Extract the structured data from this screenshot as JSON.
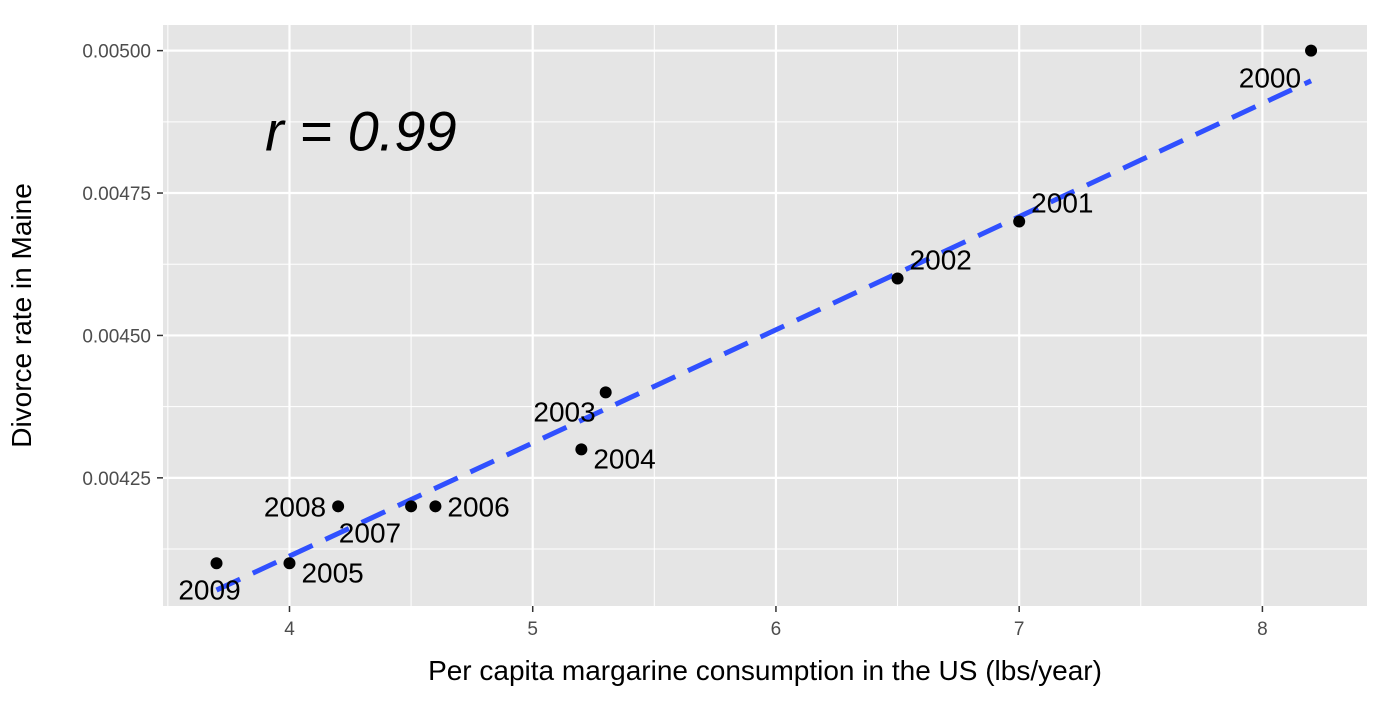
{
  "chart_data": {
    "type": "scatter",
    "xlabel": "Per capita margarine consumption in the US (lbs/year)",
    "ylabel": "Divorce rate in Maine",
    "xlim": [
      3.48,
      8.43
    ],
    "ylim": [
      0.004025,
      0.005045
    ],
    "x_ticks": [
      4,
      5,
      6,
      7,
      8
    ],
    "x_tick_labels": [
      "4",
      "5",
      "6",
      "7",
      "8"
    ],
    "y_ticks": [
      0.00425,
      0.0045,
      0.00475,
      0.005
    ],
    "y_tick_labels": [
      "0.00425",
      "0.00450",
      "0.00475",
      "0.00500"
    ],
    "grid": true,
    "annotation": "r = 0.99",
    "annotation_pos": [
      3.9,
      0.00486
    ],
    "points": [
      {
        "x": 8.2,
        "y": 0.005,
        "label": "2000",
        "label_side": "below-left"
      },
      {
        "x": 7.0,
        "y": 0.0047,
        "label": "2001",
        "label_side": "above-right"
      },
      {
        "x": 6.5,
        "y": 0.0046,
        "label": "2002",
        "label_side": "above-right"
      },
      {
        "x": 5.3,
        "y": 0.0044,
        "label": "2003",
        "label_side": "below-left"
      },
      {
        "x": 5.2,
        "y": 0.0043,
        "label": "2004",
        "label_side": "below-right"
      },
      {
        "x": 4.0,
        "y": 0.0041,
        "label": "2005",
        "label_side": "below-right"
      },
      {
        "x": 4.6,
        "y": 0.0042,
        "label": "2006",
        "label_side": "right"
      },
      {
        "x": 4.5,
        "y": 0.0042,
        "label": "2007",
        "label_side": "below-left"
      },
      {
        "x": 4.2,
        "y": 0.0042,
        "label": "2008",
        "label_side": "left"
      },
      {
        "x": 3.7,
        "y": 0.0041,
        "label": "2009",
        "label_side": "below"
      }
    ],
    "trend_line": {
      "style": "dashed",
      "color": "#3050ff",
      "x": [
        3.7,
        8.2
      ],
      "y": [
        0.004053,
        0.004947
      ]
    },
    "point_color": "#000000",
    "panel_color": "#e5e5e5",
    "grid_color": "#ffffff"
  }
}
